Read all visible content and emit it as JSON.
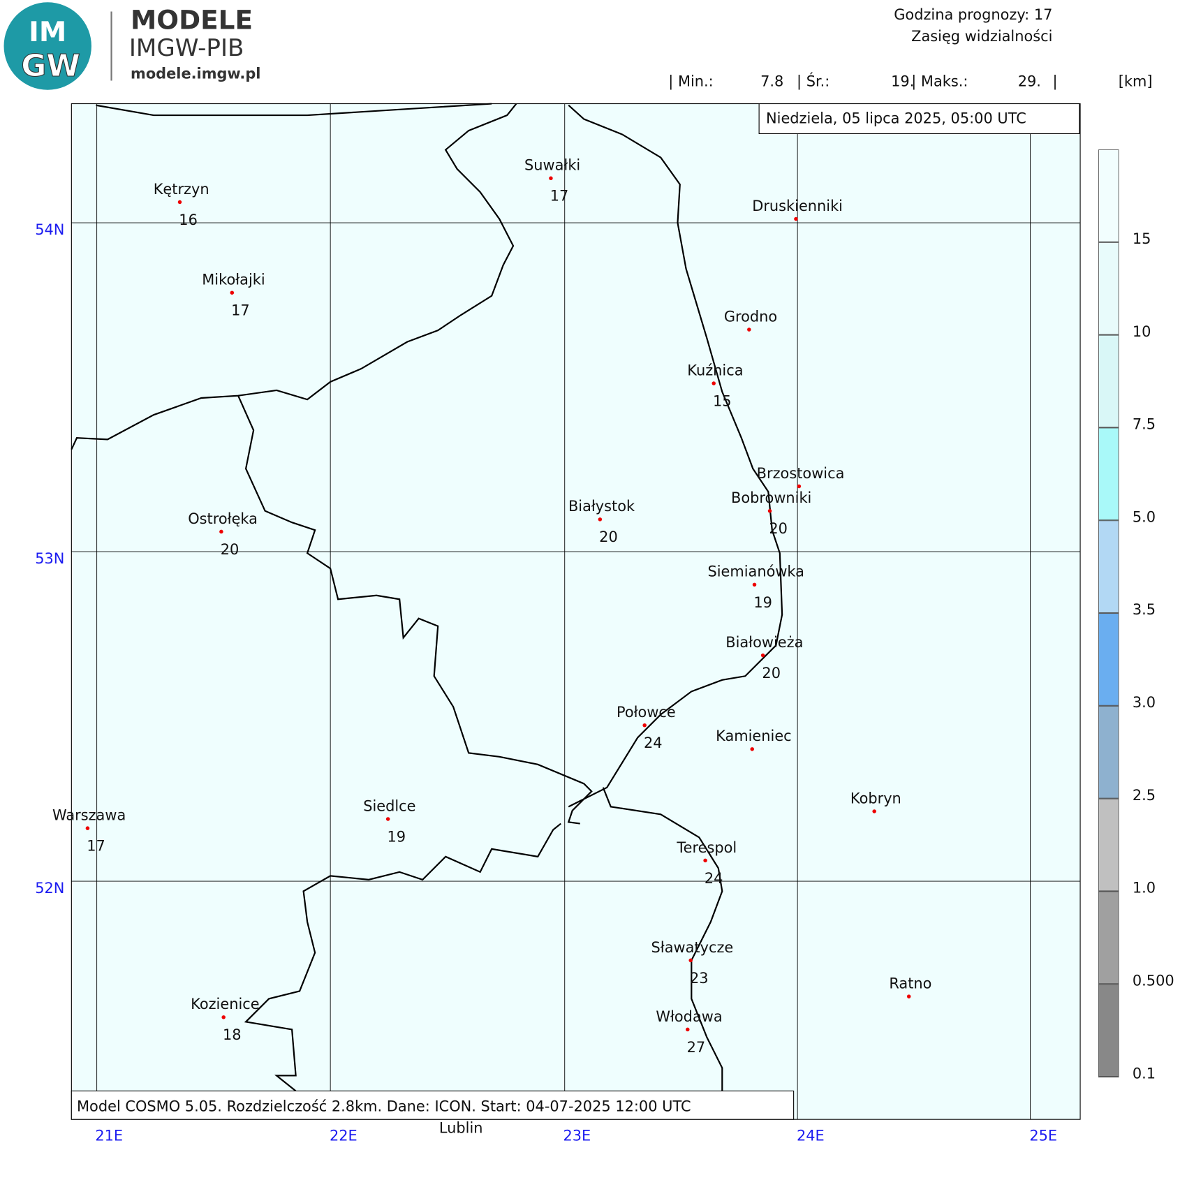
{
  "header": {
    "brand": "MODELE",
    "org": "IMGW-PIB",
    "url": "modele.imgw.pl",
    "logo_top": "IM",
    "logo_bottom": "GW",
    "forecast_hour": "Godzina prognozy: 17",
    "product": "Zasięg widzialności",
    "stats": [
      "| Min.:",
      "7.8",
      "| Śr.:",
      "19.",
      "| Maks.:",
      "29.",
      "|",
      "[km]"
    ]
  },
  "date_label": "Niedziela, 05 lipca 2025, 05:00 UTC",
  "footer": "Model COSMO 5.05. Rozdzielczość 2.8km. Dane: ICON. Start: 04-07-2025 12:00 UTC",
  "outside_label": "Lublin",
  "grid": {
    "lon_labels": [
      "21E",
      "22E",
      "23E",
      "24E",
      "25E"
    ],
    "lat_labels": [
      "54N",
      "53N",
      "52N"
    ]
  },
  "cities": [
    {
      "name": "Kętrzyn",
      "value": 16
    },
    {
      "name": "Suwałki",
      "value": 17
    },
    {
      "name": "Druskienniki"
    },
    {
      "name": "Mikołajki",
      "value": 17
    },
    {
      "name": "Grodno"
    },
    {
      "name": "Kuźnica",
      "value": 15
    },
    {
      "name": "Brzostowica"
    },
    {
      "name": "Bobrowniki",
      "value": 20
    },
    {
      "name": "Białystok",
      "value": 20
    },
    {
      "name": "Ostrołęka",
      "value": 20
    },
    {
      "name": "Siemianówka",
      "value": 19
    },
    {
      "name": "Białowieża",
      "value": 20
    },
    {
      "name": "Połowce",
      "value": 24
    },
    {
      "name": "Kamieniec"
    },
    {
      "name": "Kobryn"
    },
    {
      "name": "Warszawa",
      "value": 17
    },
    {
      "name": "Siedlce",
      "value": 19
    },
    {
      "name": "Terespol",
      "value": 24
    },
    {
      "name": "Sławatycze",
      "value": 23
    },
    {
      "name": "Ratno"
    },
    {
      "name": "Kozienice",
      "value": 18
    },
    {
      "name": "Włodawa",
      "value": 27
    }
  ],
  "legend": {
    "ticks": [
      15,
      10,
      7.5,
      {
        "value": 5,
        "label": "5.0"
      },
      3.5,
      {
        "value": 3,
        "label": "3.0"
      },
      2.5,
      {
        "value": 1,
        "label": "1.0"
      },
      {
        "value": 0.5,
        "label": "0.500"
      },
      0.1
    ],
    "colors": [
      "#f2fefe",
      "#e8fbfb",
      "#d9f7f7",
      "#a9f9f9",
      "#b2d8f4",
      "#6aaef0",
      "#8eb1cf",
      "#c0c0c0",
      "#a0a0a0",
      "#888888"
    ]
  }
}
